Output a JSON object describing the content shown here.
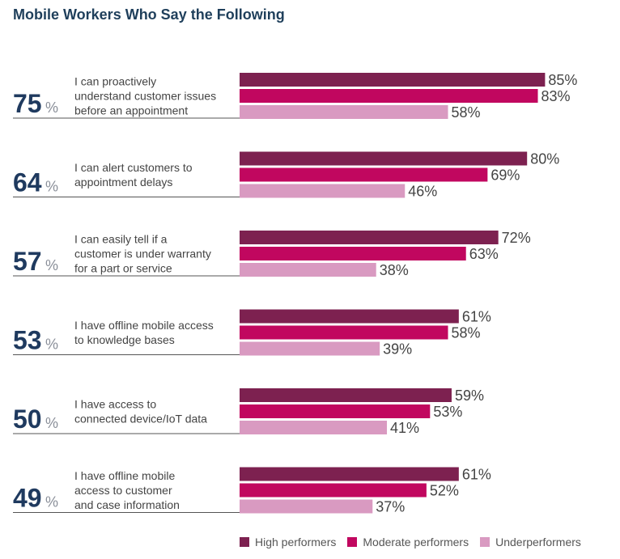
{
  "chart_data": {
    "type": "bar",
    "orientation": "horizontal",
    "title": "Mobile Workers Who Say the Following",
    "percent_symbol": "%",
    "value_suffix": "%",
    "xlim": [
      0,
      100
    ],
    "grid": false,
    "legend_position": "bottom-right",
    "colors": {
      "High performers": "#7d2150",
      "Moderate performers": "#c1075f",
      "Underperformers": "#d99ac1",
      "summary_number": "#1f3a5f",
      "label_text": "#444444",
      "value_text": "#444444",
      "divider": "#555555"
    },
    "series_names": [
      "High performers",
      "Moderate performers",
      "Underperformers"
    ],
    "groups": [
      {
        "summary": "75",
        "label_lines": [
          "I can proactively",
          "understand customer issues",
          "before an appointment"
        ],
        "values": [
          85,
          83,
          58
        ]
      },
      {
        "summary": "64",
        "label_lines": [
          "I can alert customers to",
          "appointment delays"
        ],
        "values": [
          80,
          69,
          46
        ]
      },
      {
        "summary": "57",
        "label_lines": [
          "I can easily tell if a",
          "customer is under warranty",
          "for a part or service"
        ],
        "values": [
          72,
          63,
          38
        ]
      },
      {
        "summary": "53",
        "label_lines": [
          "I have offline mobile access",
          "to knowledge bases"
        ],
        "values": [
          61,
          58,
          39
        ]
      },
      {
        "summary": "50",
        "label_lines": [
          "I have access to",
          "connected device/IoT data"
        ],
        "values": [
          59,
          53,
          41
        ]
      },
      {
        "summary": "49",
        "label_lines": [
          "I have offline mobile",
          "access to customer",
          "and case information"
        ],
        "values": [
          61,
          52,
          37
        ]
      }
    ]
  }
}
